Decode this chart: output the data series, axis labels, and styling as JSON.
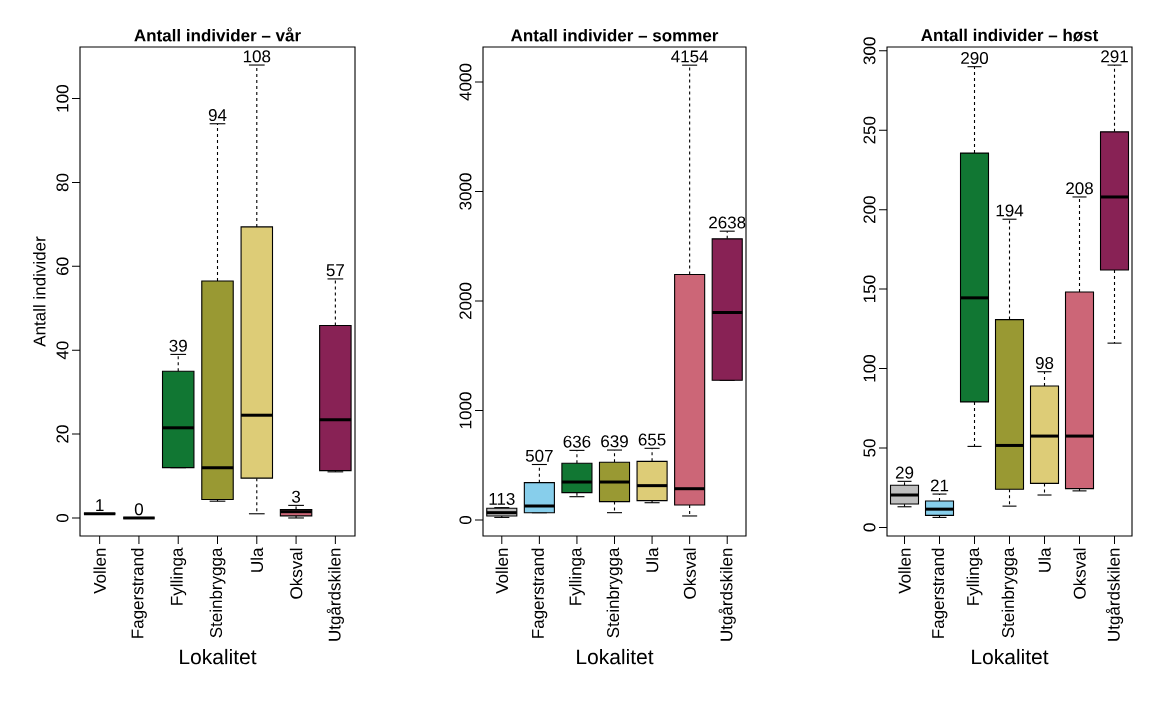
{
  "chart_data": [
    {
      "type": "box",
      "title": "Antall individer – vår",
      "xlabel": "Lokalitet",
      "ylabel": "Antall individer",
      "categories": [
        "Vollen",
        "Fagerstrand",
        "Fyllinga",
        "Steinbrygga",
        "Ula",
        "Oksval",
        "Utgårdskilen"
      ],
      "colors": [
        "#000000",
        "#000000",
        "#117733",
        "#999933",
        "#ddcc77",
        "#cc6677",
        "#882255"
      ],
      "boxes": [
        {
          "low": 1,
          "q1": 1,
          "median": 1,
          "q3": 1,
          "high": 1
        },
        {
          "low": 0,
          "q1": 0,
          "median": 0,
          "q3": 0,
          "high": 0
        },
        {
          "low": 12,
          "q1": 12,
          "median": 21.5,
          "q3": 35,
          "high": 39
        },
        {
          "low": 4,
          "q1": 4.4,
          "median": 12,
          "q3": 56.5,
          "high": 94
        },
        {
          "low": 1,
          "q1": 9.5,
          "median": 24.5,
          "q3": 69.4,
          "high": 108
        },
        {
          "low": 0,
          "q1": 0.5,
          "median": 1.5,
          "q3": 2,
          "high": 3
        },
        {
          "low": 11,
          "q1": 11.3,
          "median": 23.4,
          "q3": 45.9,
          "high": 57
        }
      ],
      "ylim": [
        -4.3,
        112.3
      ],
      "yticks": [
        0,
        20,
        40,
        60,
        80,
        100
      ],
      "annotations": [
        {
          "text": "1",
          "x": "Vollen",
          "y": 1
        },
        {
          "text": "0",
          "x": "Fagerstrand",
          "y": 0
        },
        {
          "text": "39",
          "x": "Fyllinga",
          "y": 39
        },
        {
          "text": "94",
          "x": "Steinbrygga",
          "y": 94
        },
        {
          "text": "108",
          "x": "Ula",
          "y": 108
        },
        {
          "text": "3",
          "x": "Oksval",
          "y": 3
        },
        {
          "text": "57",
          "x": "Utgårdskilen",
          "y": 57
        }
      ]
    },
    {
      "type": "box",
      "title": "Antall individer – sommer",
      "xlabel": "Lokalitet",
      "categories": [
        "Vollen",
        "Fagerstrand",
        "Fyllinga",
        "Steinbrygga",
        "Ula",
        "Oksval",
        "Utgårdskilen"
      ],
      "colors": [
        "#bebebe",
        "#87ceeb",
        "#117733",
        "#999933",
        "#ddcc77",
        "#cc6677",
        "#882255"
      ],
      "boxes": [
        {
          "low": 24,
          "q1": 37,
          "median": 67,
          "q3": 107,
          "high": 113
        },
        {
          "low": 67,
          "q1": 67,
          "median": 128,
          "q3": 341,
          "high": 507
        },
        {
          "low": 213,
          "q1": 250,
          "median": 347,
          "q3": 518,
          "high": 636
        },
        {
          "low": 67,
          "q1": 168,
          "median": 347,
          "q3": 527,
          "high": 639
        },
        {
          "low": 158,
          "q1": 177,
          "median": 314,
          "q3": 536,
          "high": 655
        },
        {
          "low": 37,
          "q1": 137,
          "median": 286,
          "q3": 2242,
          "high": 4154
        },
        {
          "low": 1276,
          "q1": 1276,
          "median": 1895,
          "q3": 2568,
          "high": 2638
        }
      ],
      "ylim": [
        -146,
        4320
      ],
      "yticks": [
        0,
        1000,
        2000,
        3000,
        4000
      ],
      "annotations": [
        {
          "text": "113",
          "x": "Vollen",
          "y": 113
        },
        {
          "text": "507",
          "x": "Fagerstrand",
          "y": 507
        },
        {
          "text": "636",
          "x": "Fyllinga",
          "y": 636
        },
        {
          "text": "639",
          "x": "Steinbrygga",
          "y": 639
        },
        {
          "text": "655",
          "x": "Ula",
          "y": 655
        },
        {
          "text": "4154",
          "x": "Oksval",
          "y": 4154
        },
        {
          "text": "2638",
          "x": "Utgårdskilen",
          "y": 2638
        }
      ]
    },
    {
      "type": "box",
      "title": "Antall individer – høst",
      "xlabel": "Lokalitet",
      "categories": [
        "Vollen",
        "Fagerstrand",
        "Fyllinga",
        "Steinbrygga",
        "Ula",
        "Oksval",
        "Utgårdskilen"
      ],
      "colors": [
        "#bebebe",
        "#87ceeb",
        "#117733",
        "#999933",
        "#ddcc77",
        "#cc6677",
        "#882255"
      ],
      "boxes": [
        {
          "low": 13,
          "q1": 14.7,
          "median": 20.4,
          "q3": 26.5,
          "high": 29
        },
        {
          "low": 6.3,
          "q1": 7.6,
          "median": 11.5,
          "q3": 16.6,
          "high": 21
        },
        {
          "low": 51,
          "q1": 79,
          "median": 144.5,
          "q3": 235.6,
          "high": 290
        },
        {
          "low": 13.4,
          "q1": 24,
          "median": 51.6,
          "q3": 130.8,
          "high": 194
        },
        {
          "low": 20.4,
          "q1": 27.7,
          "median": 57.5,
          "q3": 89,
          "high": 98
        },
        {
          "low": 23,
          "q1": 24.4,
          "median": 57.5,
          "q3": 148.2,
          "high": 208
        },
        {
          "low": 116,
          "q1": 162,
          "median": 208,
          "q3": 249,
          "high": 291
        }
      ],
      "ylim": [
        -5.4,
        302.4
      ],
      "yticks": [
        0,
        50,
        100,
        150,
        200,
        250,
        300
      ],
      "annotations": [
        {
          "text": "29",
          "x": "Vollen",
          "y": 29
        },
        {
          "text": "21",
          "x": "Fagerstrand",
          "y": 21
        },
        {
          "text": "290",
          "x": "Fyllinga",
          "y": 290
        },
        {
          "text": "194",
          "x": "Steinbrygga",
          "y": 194
        },
        {
          "text": "98",
          "x": "Ula",
          "y": 98
        },
        {
          "text": "208",
          "x": "Oksval",
          "y": 208
        },
        {
          "text": "291",
          "x": "Utgårdskilen",
          "y": 291
        }
      ]
    }
  ]
}
